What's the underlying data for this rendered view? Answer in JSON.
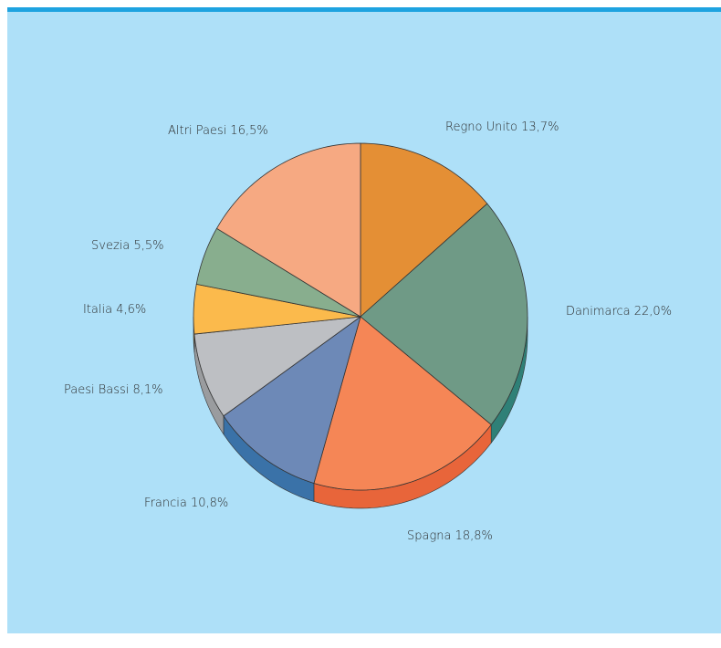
{
  "chart_data": {
    "type": "pie",
    "title": "",
    "slices": [
      {
        "label": "Regno Unito 13,7%",
        "name": "Regno Unito",
        "value": 13.7,
        "color": "#e48f35",
        "side": "#b8701f"
      },
      {
        "label": "Danimarca 22,0%",
        "name": "Danimarca",
        "value": 22.0,
        "color": "#6f9a86",
        "side": "#2f8077"
      },
      {
        "label": "Spagna 18,8%",
        "name": "Spagna",
        "value": 18.8,
        "color": "#f58656",
        "side": "#e8653a"
      },
      {
        "label": "Francia 10,8%",
        "name": "Francia",
        "value": 10.8,
        "color": "#6d89b7",
        "side": "#3a72a8"
      },
      {
        "label": "Paesi Bassi 8,1%",
        "name": "Paesi Bassi",
        "value": 8.1,
        "color": "#bdbfc3",
        "side": "#9a9c9f"
      },
      {
        "label": "Italia 4,6%",
        "name": "Italia",
        "value": 4.6,
        "color": "#fbba4c",
        "side": "#d99a30"
      },
      {
        "label": "Svezia 5,5%",
        "name": "Svezia",
        "value": 5.5,
        "color": "#88ae8e",
        "side": "#6e9274"
      },
      {
        "label": "Altri Paesi 16,5%",
        "name": "Altri Paesi",
        "value": 16.5,
        "color": "#f6a982",
        "side": "#d98a64"
      }
    ],
    "start_angle": "12 o'clock",
    "direction": "clockwise",
    "style": "3d-tilted",
    "background_color": "#aee0f8",
    "accent_rule_color": "#1ea3e0"
  }
}
